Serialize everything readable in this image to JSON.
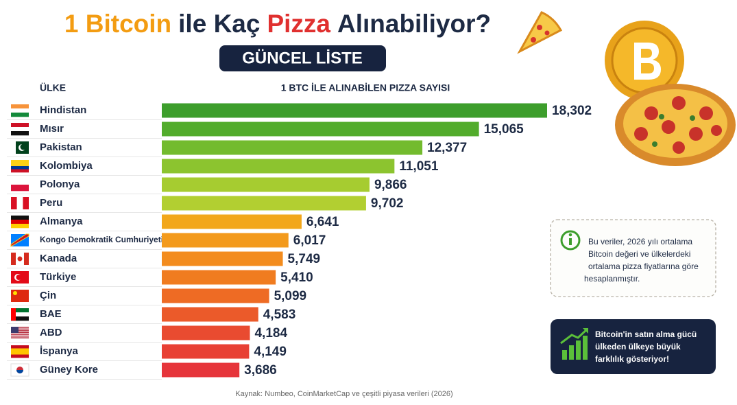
{
  "chart_data": {
    "type": "bar",
    "orientation": "horizontal",
    "title_parts": [
      {
        "text": "1 Bitcoin",
        "color": "#f39c12"
      },
      {
        "text": "ile Kaç",
        "color": "#1d2a44"
      },
      {
        "text": "Pizza",
        "color": "#e0302f"
      },
      {
        "text": "Alınabiliyor?",
        "color": "#1d2a44"
      }
    ],
    "subtitle": "GÜNCEL LİSTE",
    "category_header": "ÜLKE",
    "value_header": "1 BTC İLE ALINABİLEN PIZZA SAYISI",
    "categories": [
      "Hindistan",
      "Mısır",
      "Pakistan",
      "Kolombiya",
      "Polonya",
      "Peru",
      "Almanya",
      "Kongo Demokratik Cumhuriyeti",
      "Kanada",
      "Türkiye",
      "Çin",
      "BAE",
      "ABD",
      "İspanya",
      "Güney Kore"
    ],
    "values": [
      18302,
      15065,
      12377,
      11051,
      9866,
      9702,
      6641,
      6017,
      5749,
      5410,
      5099,
      4583,
      4184,
      4149,
      3686
    ],
    "value_labels": [
      "18,302",
      "15,065",
      "12,377",
      "11,051",
      "9,866",
      "9,702",
      "6,641",
      "6,017",
      "5,749",
      "5,410",
      "5,099",
      "4,583",
      "4,184",
      "4,149",
      "3,686"
    ],
    "colors": [
      "#3d9e2c",
      "#52ac2c",
      "#73bb2e",
      "#8cc42f",
      "#a6cc30",
      "#b2cf31",
      "#f2a71b",
      "#f39a1c",
      "#f38c1e",
      "#f07c20",
      "#ee6b24",
      "#eb5a2a",
      "#e94b30",
      "#e84034",
      "#e6353b"
    ],
    "note_lines": [
      "Bu veriler, 2026 yılı ortalama",
      "Bitcoin değeri ve ülkelerdeki",
      "ortalama pizza fiyatlarına göre",
      "hesaplanmıştır."
    ],
    "callout_lines": [
      "Bitcoin'in satın alma gücü",
      "ülkeden ülkeye büyük",
      "farklılık gösteriyor!"
    ],
    "source": "Kaynak: Numbeo, CoinMarketCap ve çeşitli piyasa verileri (2026)"
  }
}
